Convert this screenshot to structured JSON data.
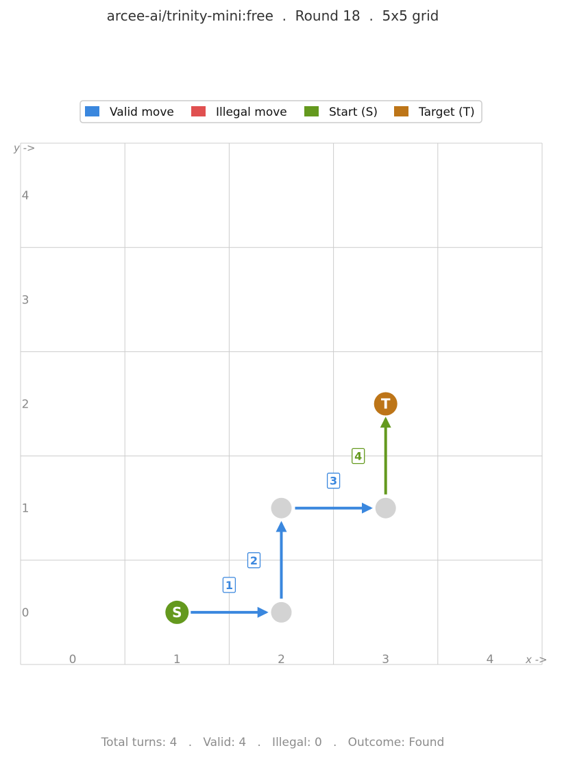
{
  "title": "arcee-ai/trinity-mini:free  .  Round 18  .  5x5 grid",
  "footer": "Total turns: 4   .   Valid: 4   .   Illegal: 0   .   Outcome: Found",
  "colors": {
    "valid": "#3a87de",
    "illegal": "#e05050",
    "start": "#64991e",
    "target": "#bd7518",
    "visited": "#d3d3d3",
    "grid": "#cccccc",
    "axis_text": "#888888"
  },
  "chart_data": {
    "type": "scatter",
    "grid_size": 5,
    "x_ticks": [
      "0",
      "1",
      "2",
      "3",
      "4"
    ],
    "y_ticks": [
      "0",
      "1",
      "2",
      "3",
      "4"
    ],
    "xlabel": "x ->",
    "ylabel": "y ->",
    "grid": true,
    "legend_position": "top-center",
    "legend": [
      {
        "label": "Valid move",
        "color": "#3a87de"
      },
      {
        "label": "Illegal move",
        "color": "#e05050"
      },
      {
        "label": "Start (S)",
        "color": "#64991e"
      },
      {
        "label": "Target (T)",
        "color": "#bd7518"
      }
    ],
    "start": {
      "x": 1,
      "y": 0,
      "label": "S"
    },
    "target": {
      "x": 3,
      "y": 2,
      "label": "T"
    },
    "visited": [
      {
        "x": 2,
        "y": 0
      },
      {
        "x": 2,
        "y": 1
      },
      {
        "x": 3,
        "y": 1
      }
    ],
    "moves": [
      {
        "step": "1",
        "from": [
          1,
          0
        ],
        "to": [
          2,
          0
        ],
        "kind": "valid"
      },
      {
        "step": "2",
        "from": [
          2,
          0
        ],
        "to": [
          2,
          1
        ],
        "kind": "valid"
      },
      {
        "step": "3",
        "from": [
          2,
          1
        ],
        "to": [
          3,
          1
        ],
        "kind": "valid"
      },
      {
        "step": "4",
        "from": [
          3,
          1
        ],
        "to": [
          3,
          2
        ],
        "kind": "final"
      }
    ]
  }
}
